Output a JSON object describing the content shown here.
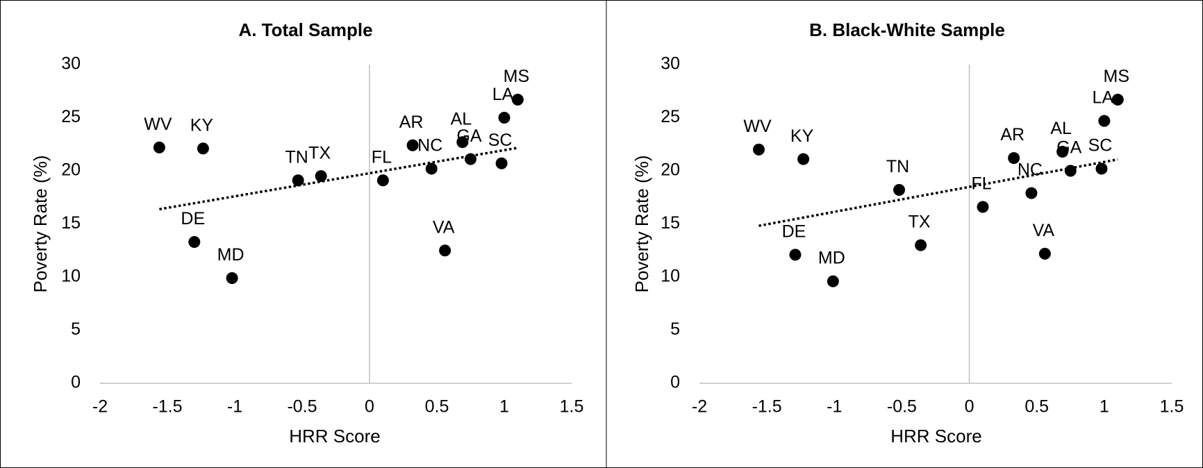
{
  "chart_data": [
    {
      "type": "scatter",
      "title": "A. Total Sample",
      "x_label": "HRR Score",
      "y_label": "Poverty Rate (%)",
      "point_labels": [
        "WV",
        "KY",
        "DE",
        "MD",
        "TN",
        "TX",
        "FL",
        "AR",
        "NC",
        "VA",
        "AL",
        "GA",
        "SC",
        "LA",
        "MS"
      ],
      "x": [
        -1.56,
        -1.235,
        -1.3,
        -1.02,
        -0.53,
        -0.36,
        0.1,
        0.32,
        0.46,
        0.56,
        0.69,
        0.75,
        0.98,
        1.0,
        1.1
      ],
      "y": [
        22.2,
        22.1,
        13.3,
        9.9,
        19.1,
        19.5,
        19.1,
        22.4,
        20.2,
        12.5,
        22.7,
        21.1,
        20.7,
        25.0,
        26.7
      ],
      "color": "#000000",
      "trendline": true,
      "xlim": [
        -2,
        1.5
      ],
      "xticks": [
        -2,
        -1.5,
        -1,
        -0.5,
        0,
        0.5,
        1,
        1.5
      ],
      "ylim": [
        0,
        30
      ],
      "yticks": [
        0,
        5,
        10,
        15,
        20,
        25,
        30
      ]
    },
    {
      "type": "scatter",
      "title": "B. Black-White Sample",
      "x_label": "HRR Score",
      "y_label": "Poverty Rate (%)",
      "point_labels": [
        "WV",
        "KY",
        "DE",
        "MD",
        "TN",
        "TX",
        "FL",
        "AR",
        "NC",
        "VA",
        "AL",
        "GA",
        "SC",
        "LA",
        "MS"
      ],
      "x": [
        -1.56,
        -1.23,
        -1.29,
        -1.01,
        -0.52,
        -0.36,
        0.1,
        0.33,
        0.46,
        0.56,
        0.69,
        0.75,
        0.98,
        1.0,
        1.1
      ],
      "y": [
        22.0,
        21.1,
        12.1,
        9.6,
        18.2,
        13.0,
        16.6,
        21.2,
        17.9,
        12.2,
        21.8,
        20.0,
        20.2,
        24.7,
        26.7
      ],
      "color": "#000000",
      "trendline": true,
      "xlim": [
        -2,
        1.5
      ],
      "xticks": [
        -2,
        -1.5,
        -1,
        -0.5,
        0,
        0.5,
        1,
        1.5
      ],
      "ylim": [
        0,
        30
      ],
      "yticks": [
        0,
        5,
        10,
        15,
        20,
        25,
        30
      ]
    }
  ]
}
